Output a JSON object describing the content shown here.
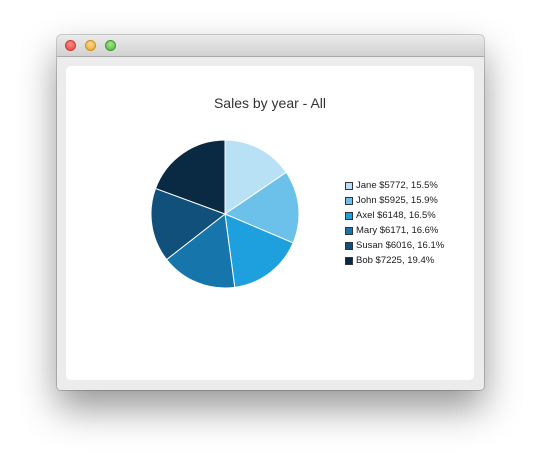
{
  "window": {
    "buttons": [
      "close",
      "minimize",
      "maximize"
    ]
  },
  "chart_data": {
    "type": "pie",
    "title": "Sales by year - All",
    "slices": [
      {
        "label": "Jane $5772, 15.5%",
        "name": "Jane",
        "value": 5772,
        "percent": 15.5,
        "color": "#b9e1f6"
      },
      {
        "label": "John $5925, 15.9%",
        "name": "John",
        "value": 5925,
        "percent": 15.9,
        "color": "#6cc1ea"
      },
      {
        "label": "Axel $6148, 16.5%",
        "name": "Axel",
        "value": 6148,
        "percent": 16.5,
        "color": "#1e9fde"
      },
      {
        "label": "Mary $6171, 16.6%",
        "name": "Mary",
        "value": 6171,
        "percent": 16.6,
        "color": "#1676ab"
      },
      {
        "label": "Susan $6016, 16.1%",
        "name": "Susan",
        "value": 6016,
        "percent": 16.1,
        "color": "#10507a"
      },
      {
        "label": "Bob $7225, 19.4%",
        "name": "Bob",
        "value": 7225,
        "percent": 19.4,
        "color": "#0a2a44"
      }
    ],
    "legend_position": "right"
  }
}
